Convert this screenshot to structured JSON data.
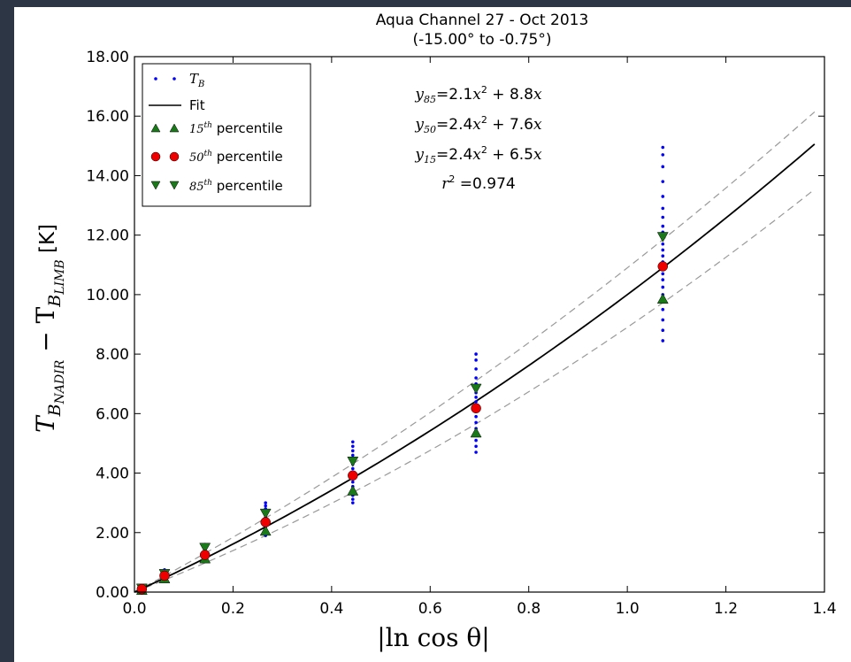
{
  "chart_data": {
    "type": "scatter",
    "title": "Aqua Channel 27 - Oct 2013",
    "subtitle": "(-15.00° to -0.75°)",
    "xlabel": "|ln cos θ|",
    "ylabel_main": "T",
    "ylabel_sub1": "B",
    "ylabel_sub1b": "NADIR",
    "ylabel_mid": " − T",
    "ylabel_sub2": "B",
    "ylabel_sub2b": "LIMB",
    "ylabel_unit": " [K]",
    "xlim": [
      0.0,
      1.4
    ],
    "ylim": [
      0.0,
      18.0
    ],
    "x_ticks": [
      0.0,
      0.2,
      0.4,
      0.6,
      0.8,
      1.0,
      1.2,
      1.4
    ],
    "x_tick_labels": [
      "0.0",
      "0.2",
      "0.4",
      "0.6",
      "0.8",
      "1.0",
      "1.2",
      "1.4"
    ],
    "y_ticks": [
      0,
      2,
      4,
      6,
      8,
      10,
      12,
      14,
      16,
      18
    ],
    "y_tick_labels": [
      "0.00",
      "2.00",
      "4.00",
      "6.00",
      "8.00",
      "10.00",
      "12.00",
      "14.00",
      "16.00",
      "18.00"
    ],
    "grid": false,
    "legend_position": "top-left",
    "legend": [
      {
        "kind": "dots",
        "label_math": "T",
        "label_sub": "B",
        "label": ""
      },
      {
        "kind": "line",
        "label": "Fit"
      },
      {
        "kind": "triangle-up",
        "label_math": "15",
        "label_sup": "th",
        "label": " percentile"
      },
      {
        "kind": "circle",
        "label_math": "50",
        "label_sup": "th",
        "label": " percentile"
      },
      {
        "kind": "triangle-down",
        "label_math": "85",
        "label_sup": "th",
        "label": " percentile"
      }
    ],
    "annotations": {
      "eq85": {
        "var": "y",
        "sub": "85",
        "text": "=2.1",
        "var2": "x",
        "sup": "2",
        "text2": " + 8.8",
        "var3": "x"
      },
      "eq50": {
        "var": "y",
        "sub": "50",
        "text": "=2.4",
        "var2": "x",
        "sup": "2",
        "text2": " + 7.6",
        "var3": "x"
      },
      "eq15": {
        "var": "y",
        "sub": "15",
        "text": "=2.4",
        "var2": "x",
        "sup": "2",
        "text2": " + 6.5",
        "var3": "x"
      },
      "r2": {
        "var": "r",
        "sup": "2",
        "text": " =0.974"
      }
    },
    "fit_curves": {
      "fit": {
        "a": 2.4,
        "b": 7.6,
        "color": "#000000"
      },
      "p85": {
        "a": 2.1,
        "b": 8.8,
        "color": "#999999"
      },
      "p15": {
        "a": 2.4,
        "b": 6.5,
        "color": "#999999"
      },
      "x_max": 1.38
    },
    "tb_points": {
      "color": "#0000ff",
      "groups": [
        {
          "x": 0.015,
          "y": [
            0.03,
            0.06,
            0.09,
            0.12,
            0.15,
            0.18
          ]
        },
        {
          "x": 0.061,
          "y": [
            0.42,
            0.48,
            0.55,
            0.62,
            0.68,
            0.75
          ]
        },
        {
          "x": 0.143,
          "y": [
            1.05,
            1.12,
            1.2,
            1.28,
            1.36,
            1.44,
            1.52,
            1.6
          ]
        },
        {
          "x": 0.266,
          "y": [
            1.9,
            2.0,
            2.1,
            2.2,
            2.3,
            2.4,
            2.5,
            2.6,
            2.7,
            2.8,
            2.9,
            3.0
          ]
        },
        {
          "x": 0.443,
          "y": [
            3.0,
            3.12,
            3.25,
            3.4,
            3.55,
            3.7,
            3.85,
            4.0,
            4.15,
            4.3,
            4.45,
            4.6,
            4.75,
            4.9,
            5.05
          ]
        },
        {
          "x": 0.693,
          "y": [
            4.7,
            4.9,
            5.1,
            5.3,
            5.5,
            5.7,
            5.9,
            6.1,
            6.25,
            6.4,
            6.55,
            6.7,
            6.85,
            7.0,
            7.2,
            7.5,
            7.8,
            8.0
          ]
        },
        {
          "x": 1.072,
          "y": [
            8.45,
            8.8,
            9.15,
            9.5,
            9.75,
            10.0,
            10.25,
            10.5,
            10.7,
            10.9,
            11.1,
            11.3,
            11.5,
            11.7,
            11.9,
            12.1,
            12.3,
            12.6,
            12.9,
            13.3,
            13.8,
            14.3,
            14.7,
            14.95
          ]
        }
      ]
    },
    "percentiles": {
      "p15": {
        "marker": "triangle-up",
        "color": "#1a7a1a",
        "x": [
          0.015,
          0.061,
          0.143,
          0.266,
          0.443,
          0.693,
          1.072
        ],
        "y": [
          0.06,
          0.45,
          1.12,
          2.05,
          3.4,
          5.35,
          9.85
        ]
      },
      "p50": {
        "marker": "circle",
        "color": "#ee0000",
        "x": [
          0.015,
          0.061,
          0.143,
          0.266,
          0.443,
          0.693,
          1.072
        ],
        "y": [
          0.1,
          0.55,
          1.25,
          2.35,
          3.92,
          6.18,
          10.95
        ]
      },
      "p85": {
        "marker": "triangle-down",
        "color": "#1a7a1a",
        "x": [
          0.015,
          0.061,
          0.143,
          0.266,
          0.443,
          0.693,
          1.072
        ],
        "y": [
          0.13,
          0.62,
          1.5,
          2.65,
          4.4,
          6.85,
          11.95
        ]
      }
    }
  }
}
